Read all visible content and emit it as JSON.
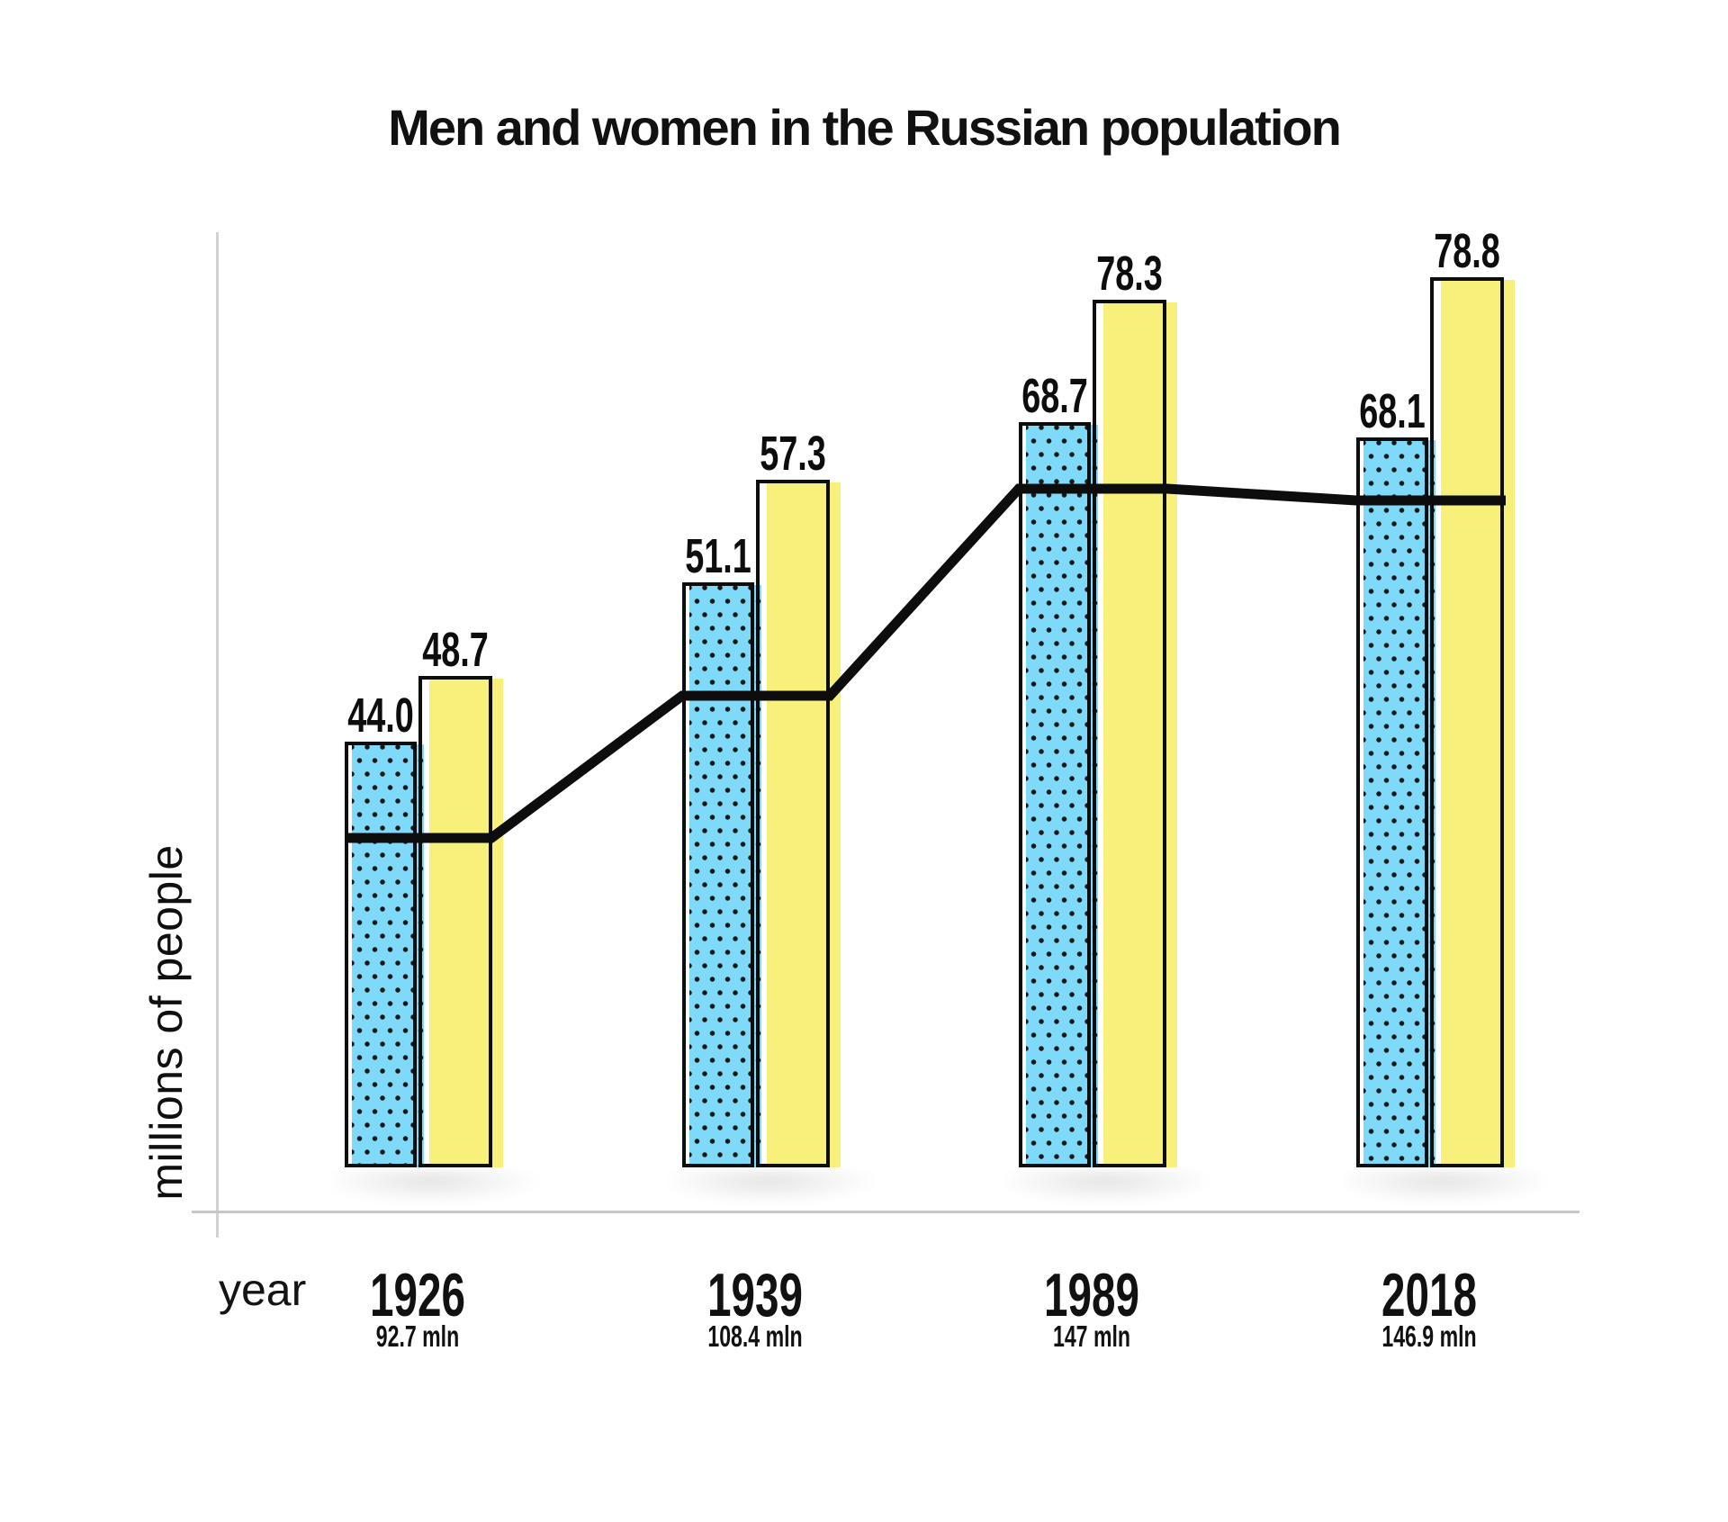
{
  "title": "Men and women in the Russian population",
  "axes": {
    "y_label": "millions of people",
    "x_label": "year"
  },
  "chart_data": {
    "type": "bar",
    "title": "Men and women in the Russian population",
    "xlabel": "year",
    "ylabel": "millions of people",
    "categories": [
      "1926",
      "1939",
      "1989",
      "2018"
    ],
    "category_totals": [
      "92.7 mln",
      "108.4 mln",
      "147 mln",
      "146.9 mln"
    ],
    "series": [
      {
        "name": "men",
        "style": "light-blue bar with black polka-dot pattern",
        "color": "#7edaf8",
        "values": [
          44.0,
          51.1,
          68.7,
          68.1
        ],
        "labels": [
          "44.0",
          "51.1",
          "68.7",
          "68.1"
        ]
      },
      {
        "name": "women",
        "style": "solid pale-yellow bar",
        "color": "#f7f07b",
        "values": [
          48.7,
          57.3,
          78.3,
          78.8
        ],
        "labels": [
          "48.7",
          "57.3",
          "78.3",
          "78.8"
        ]
      }
    ],
    "overlay_line": {
      "color": "#0d0d0d",
      "description": "thick black stepped trend line: flat across each year group, rising 1926-1989, nearly flat and slightly declining 1989-2018"
    },
    "legend": "none",
    "grid": "off",
    "axis_color": "#c9c9c9",
    "value_labels_shown": true
  },
  "colors": {
    "background": "#ffffff",
    "bar_outline": "#0d0d0d",
    "axis": "#c9c9c9",
    "text": "#111111"
  }
}
